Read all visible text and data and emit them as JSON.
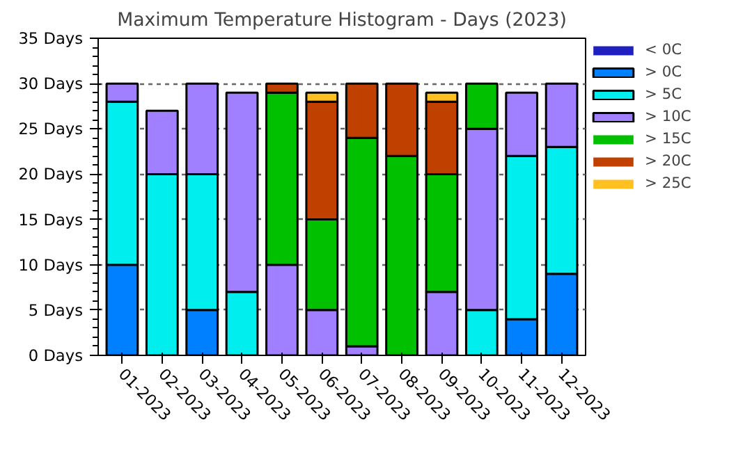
{
  "chart_data": {
    "type": "bar",
    "title": "Maximum Temperature Histogram - Days (2023)",
    "stacked": true,
    "categories": [
      "01-2023",
      "02-2023",
      "03-2023",
      "04-2023",
      "05-2023",
      "06-2023",
      "07-2023",
      "08-2023",
      "09-2023",
      "10-2023",
      "11-2023",
      "12-2023"
    ],
    "series": [
      {
        "name": "< 0C",
        "color": "#2020c0",
        "values": [
          0,
          0,
          0,
          0,
          0,
          0,
          0,
          0,
          0,
          0,
          0,
          0
        ]
      },
      {
        "name": "> 0C",
        "color": "#0080ff",
        "values": [
          10,
          0,
          5,
          0,
          0,
          0,
          0,
          0,
          0,
          0,
          4,
          9
        ]
      },
      {
        "name": "> 5C",
        "color": "#00eeee",
        "values": [
          18,
          20,
          15,
          7,
          0,
          0,
          0,
          0,
          0,
          5,
          18,
          14
        ]
      },
      {
        "name": "> 10C",
        "color": "#a080ff",
        "values": [
          2,
          7,
          10,
          22,
          10,
          5,
          1,
          0,
          7,
          20,
          7,
          7
        ]
      },
      {
        "name": "> 15C",
        "color": "#00c000",
        "values": [
          0,
          0,
          0,
          0,
          19,
          10,
          23,
          22,
          13,
          5,
          0,
          0
        ]
      },
      {
        "name": "> 20C",
        "color": "#c04000",
        "values": [
          0,
          0,
          0,
          0,
          1,
          13,
          6,
          8,
          8,
          0,
          0,
          0
        ]
      },
      {
        "name": "> 25C",
        "color": "#ffc020",
        "values": [
          0,
          0,
          0,
          0,
          0,
          1,
          0,
          0,
          1,
          0,
          0,
          0
        ]
      }
    ],
    "ylim": [
      0,
      35
    ],
    "yticks": [
      {
        "value": 0,
        "label": "0 Days"
      },
      {
        "value": 5,
        "label": "5 Days"
      },
      {
        "value": 10,
        "label": "10 Days"
      },
      {
        "value": 15,
        "label": "15 Days"
      },
      {
        "value": 20,
        "label": "20 Days"
      },
      {
        "value": 25,
        "label": "25 Days"
      },
      {
        "value": 30,
        "label": "30 Days"
      },
      {
        "value": 35,
        "label": "35 Days"
      }
    ],
    "grid": "y",
    "legend": "right"
  }
}
